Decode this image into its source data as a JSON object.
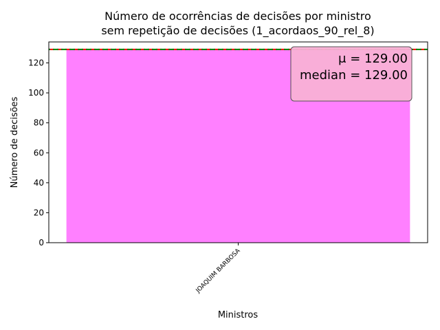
{
  "chart_data": {
    "type": "bar",
    "title_line1": "Número de ocorrências de decisões por ministro",
    "title_line2": "sem repetição de decisões (1_acordaos_90_rel_8)",
    "xlabel": "Ministros",
    "ylabel": "Número de decisões",
    "categories": [
      "JOAQUIM BARBOSA"
    ],
    "values": [
      129
    ],
    "ylim": [
      0,
      134
    ],
    "yticks": [
      0,
      20,
      40,
      60,
      80,
      100,
      120
    ],
    "bar_color": "#ff80ff",
    "mean_line": {
      "value": 129.0,
      "color": "#ff0000"
    },
    "median_line": {
      "value": 129.0,
      "color": "#008000"
    },
    "stats_box": {
      "mean_text": "μ = 129.00",
      "median_text": "median = 129.00",
      "color": "#f9b0d6"
    }
  }
}
